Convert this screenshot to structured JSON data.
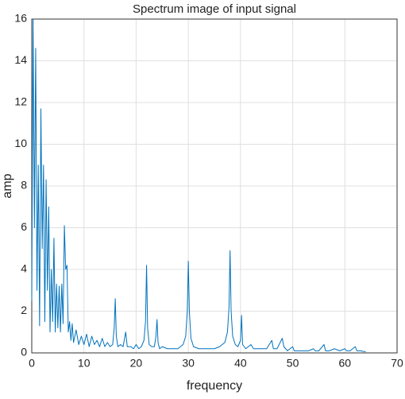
{
  "chart_data": {
    "type": "line",
    "title": "Spectrum image of input signal",
    "x_label": "frequency",
    "y_label": "amp",
    "x": [
      0,
      0.25,
      0.5,
      0.75,
      1,
      1.25,
      1.5,
      1.75,
      2,
      2.25,
      2.5,
      2.75,
      3,
      3.25,
      3.5,
      3.75,
      4,
      4.25,
      4.5,
      4.75,
      5,
      5.25,
      5.5,
      5.75,
      6,
      6.25,
      6.5,
      6.75,
      7,
      7.25,
      7.5,
      7.75,
      8,
      8.5,
      9,
      9.5,
      10,
      10.5,
      11,
      11.5,
      12,
      12.5,
      13,
      13.5,
      14,
      14.5,
      15,
      15.5,
      15.8,
      16,
      16.2,
      16.5,
      17,
      17.5,
      18,
      18.3,
      19,
      19.5,
      20,
      20.5,
      21,
      21.5,
      21.8,
      22,
      22.2,
      22.5,
      23,
      23.5,
      23.8,
      24,
      24.2,
      24.5,
      25,
      26,
      27,
      28,
      29,
      29.5,
      29.8,
      30,
      30.2,
      30.5,
      31,
      32,
      33,
      34,
      35,
      36,
      37,
      37.5,
      37.8,
      38,
      38.2,
      38.5,
      39,
      39.5,
      40,
      40.2,
      40.4,
      41,
      42,
      42.5,
      43,
      44,
      45,
      46,
      46.3,
      47,
      48,
      48.3,
      49,
      50,
      50.3,
      51,
      52,
      53,
      54,
      54.3,
      55,
      56,
      56.3,
      57,
      58,
      59,
      60,
      60.3,
      61,
      62,
      62.3,
      63,
      64
    ],
    "values": [
      2.5,
      16,
      6,
      14.6,
      3,
      9,
      1.3,
      11.7,
      5,
      9,
      1.5,
      8.3,
      3,
      7,
      1,
      4,
      1.5,
      5.5,
      1,
      3.3,
      1.2,
      3.2,
      1,
      3.3,
      1.4,
      6.1,
      4,
      4.2,
      1,
      1.5,
      0.6,
      1.4,
      0.5,
      1.1,
      0.4,
      0.8,
      0.4,
      0.9,
      0.3,
      0.8,
      0.4,
      0.6,
      0.3,
      0.7,
      0.3,
      0.5,
      0.3,
      0.4,
      1.2,
      2.6,
      0.8,
      0.3,
      0.4,
      0.3,
      1.0,
      0.3,
      0.3,
      0.2,
      0.4,
      0.2,
      0.3,
      0.6,
      1.5,
      4.2,
      1.2,
      0.4,
      0.3,
      0.3,
      0.8,
      1.6,
      0.5,
      0.2,
      0.3,
      0.2,
      0.2,
      0.2,
      0.4,
      0.8,
      2.0,
      4.4,
      2.0,
      0.7,
      0.3,
      0.2,
      0.2,
      0.2,
      0.2,
      0.3,
      0.5,
      1.0,
      2.2,
      4.9,
      2.0,
      0.8,
      0.4,
      0.3,
      0.6,
      1.8,
      0.4,
      0.2,
      0.4,
      0.2,
      0.2,
      0.2,
      0.2,
      0.6,
      0.2,
      0.2,
      0.7,
      0.3,
      0.1,
      0.3,
      0.1,
      0.1,
      0.1,
      0.1,
      0.2,
      0.1,
      0.1,
      0.4,
      0.1,
      0.1,
      0.2,
      0.1,
      0.2,
      0.1,
      0.1,
      0.3,
      0.1,
      0.1,
      0.05
    ],
    "color": "#0072bd",
    "xlim": [
      0,
      70
    ],
    "ylim": [
      0,
      16
    ],
    "xticks": [
      0,
      10,
      20,
      30,
      40,
      50,
      60,
      70
    ],
    "yticks": [
      0,
      2,
      4,
      6,
      8,
      10,
      12,
      14,
      16
    ],
    "grid": true
  }
}
